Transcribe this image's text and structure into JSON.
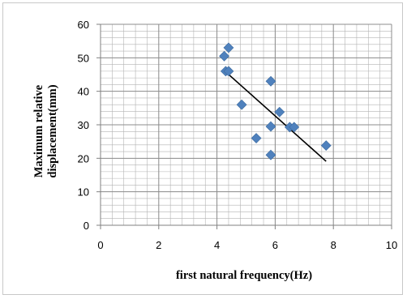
{
  "chart_data": {
    "type": "scatter",
    "title": "",
    "xlabel": "first natural frequency(Hz)",
    "ylabel_lines": [
      "Maximum relative",
      "displacement(mm)"
    ],
    "xlim": [
      0,
      10
    ],
    "ylim": [
      0,
      60
    ],
    "x_ticks": [
      0,
      2,
      4,
      6,
      8,
      10
    ],
    "y_ticks": [
      0,
      10,
      20,
      30,
      40,
      50,
      60
    ],
    "grid": "major and minor",
    "legend": "none",
    "marker": "diamond",
    "marker_color": "#4f81bd",
    "trendline_color": "#000000",
    "series": [
      {
        "points": [
          [
            4.25,
            50.5
          ],
          [
            4.4,
            53
          ],
          [
            4.3,
            46
          ],
          [
            4.4,
            46
          ],
          [
            4.85,
            36
          ],
          [
            5.35,
            26
          ],
          [
            5.85,
            43
          ],
          [
            5.85,
            29.5
          ],
          [
            5.85,
            21
          ],
          [
            6.15,
            33.8
          ],
          [
            6.5,
            29.3
          ],
          [
            6.65,
            29.3
          ],
          [
            7.75,
            23.8
          ]
        ]
      }
    ],
    "trendline": {
      "x": [
        4.25,
        7.75
      ],
      "y": [
        46.2,
        19.1
      ]
    }
  }
}
